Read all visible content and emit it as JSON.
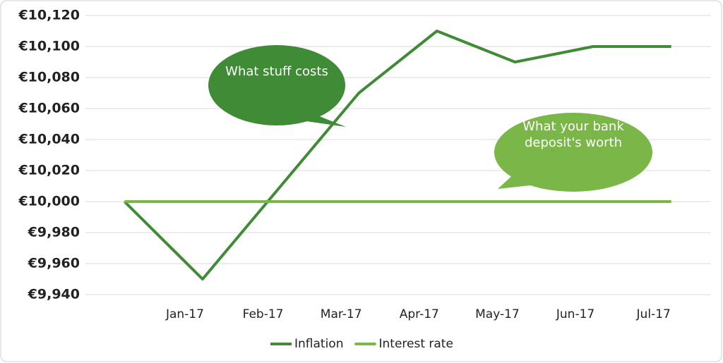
{
  "chart_data": {
    "type": "line",
    "categories": [
      null,
      "Jan-17",
      "Feb-17",
      "Mar-17",
      "Apr-17",
      "May-17",
      "Jun-17",
      "Jul-17"
    ],
    "series": [
      {
        "name": "Inflation",
        "color": "#3f8b36",
        "values": [
          10000,
          9950,
          10010,
          10070,
          10110,
          10090,
          10100,
          10100
        ]
      },
      {
        "name": "Interest rate",
        "color": "#7ab648",
        "values": [
          10000,
          10000,
          10000,
          10000,
          10000,
          10000,
          10000,
          10000
        ]
      }
    ],
    "ylim": [
      9940,
      10120
    ],
    "yticks": [
      {
        "value": 9940,
        "label": "€9,940"
      },
      {
        "value": 9960,
        "label": "€9,960"
      },
      {
        "value": 9980,
        "label": "€9,980"
      },
      {
        "value": 10000,
        "label": "€10,000"
      },
      {
        "value": 10020,
        "label": "€10,020"
      },
      {
        "value": 10040,
        "label": "€10,040"
      },
      {
        "value": 10060,
        "label": "€10,060"
      },
      {
        "value": 10080,
        "label": "€10,080"
      },
      {
        "value": 10100,
        "label": "€10,100"
      },
      {
        "value": 10120,
        "label": "€10,120"
      }
    ],
    "grid": true,
    "legend": "bottom",
    "annotations": [
      {
        "text": "What stuff costs",
        "color": "#3f8b36"
      },
      {
        "text": "What your bank deposit's worth",
        "color": "#7ab648"
      }
    ]
  }
}
